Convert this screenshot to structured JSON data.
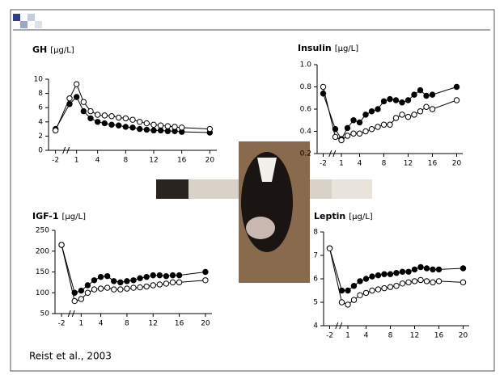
{
  "citation": "Reist et al., 2003",
  "chart_data": [
    {
      "type": "line",
      "title": "GH",
      "unit": "[µg/L]",
      "x": [
        -2,
        0,
        1,
        2,
        3,
        4,
        5,
        6,
        7,
        8,
        9,
        10,
        11,
        12,
        13,
        14,
        15,
        16,
        20
      ],
      "xlim": [
        -3,
        21
      ],
      "xticks": [
        -2,
        1,
        4,
        8,
        12,
        16,
        20
      ],
      "ylim": [
        0,
        10
      ],
      "yticks": [
        0,
        2,
        4,
        6,
        8,
        10
      ],
      "series": [
        {
          "color": "#000000",
          "fill": "#000000",
          "values": [
            3,
            6.5,
            7.5,
            5.5,
            4.5,
            4,
            3.8,
            3.6,
            3.5,
            3.3,
            3.2,
            3,
            2.9,
            2.8,
            2.8,
            2.7,
            2.7,
            2.6,
            2.5
          ]
        },
        {
          "color": "#000000",
          "fill": "#ffffff",
          "values": [
            2.8,
            7.3,
            9.3,
            6.8,
            5.5,
            5,
            4.9,
            4.8,
            4.6,
            4.5,
            4.3,
            4,
            3.8,
            3.6,
            3.5,
            3.4,
            3.3,
            3.2,
            3
          ]
        }
      ]
    },
    {
      "type": "line",
      "title": "Insulin",
      "unit": "[µg/L]",
      "x": [
        -2,
        0,
        1,
        2,
        3,
        4,
        5,
        6,
        7,
        8,
        9,
        10,
        11,
        12,
        13,
        14,
        15,
        16,
        20
      ],
      "xlim": [
        -3,
        21
      ],
      "xticks": [
        -2,
        1,
        4,
        8,
        12,
        16,
        20
      ],
      "ylim": [
        0.2,
        1
      ],
      "yticks": [
        0.2,
        0.4,
        0.6,
        0.8,
        {
          "value": 1,
          "label": "1.0"
        }
      ],
      "series": [
        {
          "color": "#000000",
          "fill": "#000000",
          "values": [
            0.74,
            0.42,
            0.33,
            0.43,
            0.5,
            0.48,
            0.55,
            0.58,
            0.6,
            0.67,
            0.69,
            0.68,
            0.66,
            0.68,
            0.73,
            0.77,
            0.72,
            0.73,
            0.8
          ]
        },
        {
          "color": "#000000",
          "fill": "#ffffff",
          "values": [
            0.8,
            0.35,
            0.32,
            0.36,
            0.38,
            0.38,
            0.4,
            0.42,
            0.44,
            0.46,
            0.46,
            0.52,
            0.55,
            0.53,
            0.55,
            0.58,
            0.62,
            0.6,
            0.68
          ]
        }
      ]
    },
    {
      "type": "line",
      "title": "IGF-1",
      "unit": "[µg/L]",
      "x": [
        -2,
        0,
        1,
        2,
        3,
        4,
        5,
        6,
        7,
        8,
        9,
        10,
        11,
        12,
        13,
        14,
        15,
        16,
        20
      ],
      "xlim": [
        -3,
        21
      ],
      "xticks": [
        -2,
        1,
        4,
        8,
        12,
        16,
        20
      ],
      "ylim": [
        50,
        250
      ],
      "yticks": [
        50,
        100,
        150,
        200,
        250
      ],
      "series": [
        {
          "color": "#000000",
          "fill": "#000000",
          "values": [
            215,
            100,
            105,
            118,
            130,
            138,
            140,
            128,
            125,
            128,
            130,
            135,
            138,
            142,
            142,
            140,
            142,
            142,
            150
          ]
        },
        {
          "color": "#000000",
          "fill": "#ffffff",
          "values": [
            215,
            80,
            85,
            100,
            108,
            110,
            112,
            108,
            108,
            110,
            112,
            113,
            115,
            118,
            120,
            122,
            125,
            125,
            130
          ]
        }
      ]
    },
    {
      "type": "line",
      "title": "Leptin",
      "unit": "[µg/L]",
      "x": [
        -2,
        0,
        1,
        2,
        3,
        4,
        5,
        6,
        7,
        8,
        9,
        10,
        11,
        12,
        13,
        14,
        15,
        16,
        20
      ],
      "xlim": [
        -3,
        21
      ],
      "xticks": [
        -2,
        1,
        4,
        8,
        12,
        16,
        20
      ],
      "ylim": [
        4,
        8
      ],
      "yticks": [
        4,
        5,
        6,
        7,
        8
      ],
      "series": [
        {
          "color": "#000000",
          "fill": "#000000",
          "values": [
            7.3,
            5.5,
            5.5,
            5.7,
            5.9,
            6,
            6.1,
            6.15,
            6.2,
            6.2,
            6.25,
            6.3,
            6.3,
            6.4,
            6.5,
            6.45,
            6.4,
            6.4,
            6.45
          ]
        },
        {
          "color": "#000000",
          "fill": "#ffffff",
          "values": [
            7.3,
            5,
            4.9,
            5.1,
            5.3,
            5.4,
            5.5,
            5.55,
            5.6,
            5.65,
            5.7,
            5.8,
            5.85,
            5.9,
            5.95,
            5.9,
            5.85,
            5.9,
            5.85
          ]
        }
      ]
    }
  ]
}
